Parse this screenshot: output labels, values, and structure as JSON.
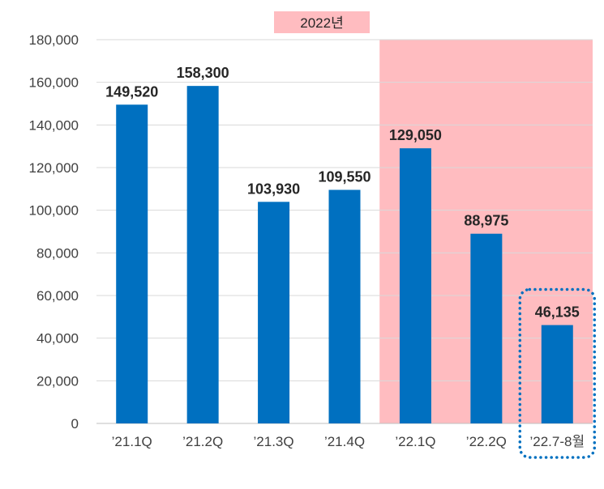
{
  "chart_data": {
    "type": "bar",
    "categories": [
      "’21.1Q",
      "’21.2Q",
      "’21.3Q",
      "’21.4Q",
      "’22.1Q",
      "’22.2Q",
      "’22.7-8월"
    ],
    "values": [
      149520,
      158300,
      103930,
      109550,
      129050,
      88975,
      46135
    ],
    "value_labels": [
      "149,520",
      "158,300",
      "103,930",
      "109,550",
      "129,050",
      "88,975",
      "46,135"
    ],
    "ylim": [
      0,
      180000
    ],
    "y_ticks": [
      0,
      20000,
      40000,
      60000,
      80000,
      100000,
      120000,
      140000,
      160000,
      180000
    ],
    "y_tick_labels": [
      "0",
      "20,000",
      "40,000",
      "60,000",
      "80,000",
      "100,000",
      "120,000",
      "140,000",
      "160,000",
      "180,000"
    ],
    "grid": true,
    "highlight": {
      "label": "2022년",
      "from_category": "’22.1Q",
      "to_category": "’22.7-8월"
    },
    "emphasized_category": "’22.7-8월",
    "legend": {
      "position": "top-center"
    }
  },
  "colors": {
    "bar": "#0070c0",
    "highlight_band": "#ffbcc0",
    "dotted_box": "#0070c0",
    "grid": "#d9d9d9"
  }
}
